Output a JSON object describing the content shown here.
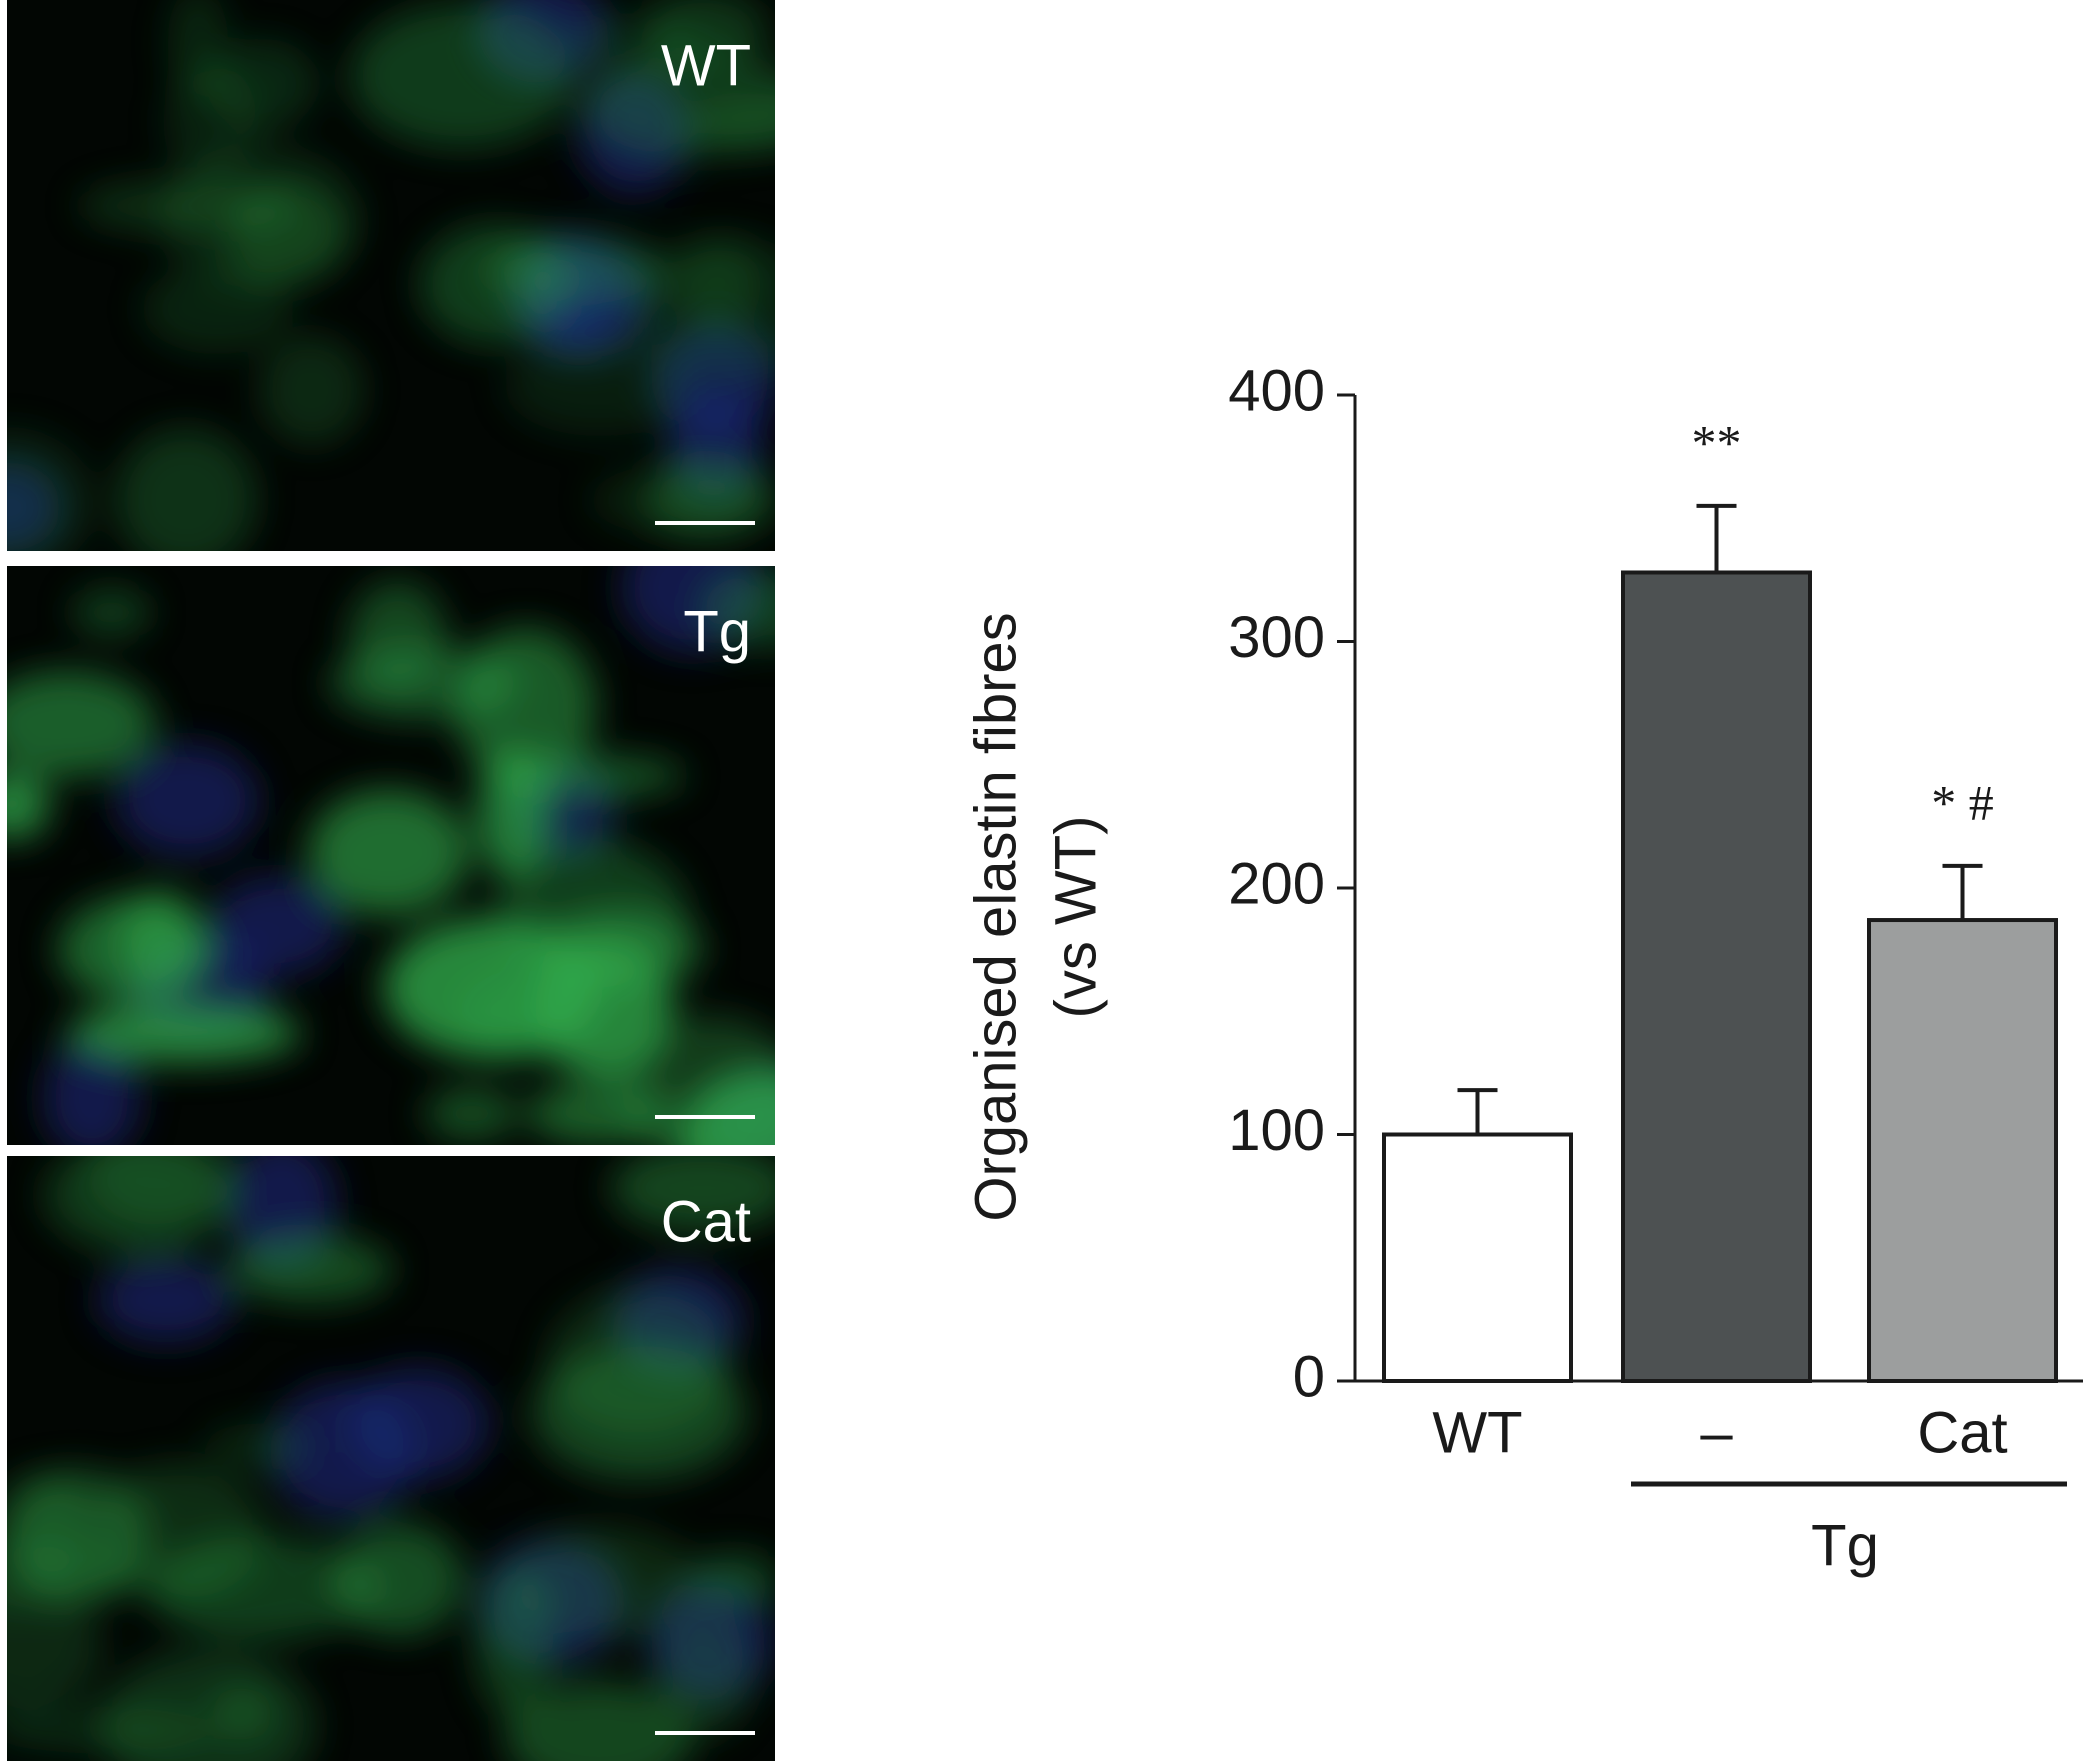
{
  "chart_data": {
    "type": "bar",
    "y_label": [
      "Organised elastin fibres",
      "(vs WT)"
    ],
    "categories": [
      "WT",
      "–",
      "Cat"
    ],
    "values": [
      100,
      328,
      187
    ],
    "errors": [
      18,
      27,
      22
    ],
    "colors": [
      "#ffffff",
      "#4d5152",
      "#9c9e9e"
    ],
    "annotations": [
      null,
      "**",
      "* #"
    ],
    "group_label": "Tg",
    "ylim": [
      0,
      400
    ],
    "yticks": [
      0,
      100,
      200,
      300,
      400
    ]
  },
  "image_panels": {
    "labels": [
      "WT",
      "Tg",
      "Cat"
    ]
  }
}
